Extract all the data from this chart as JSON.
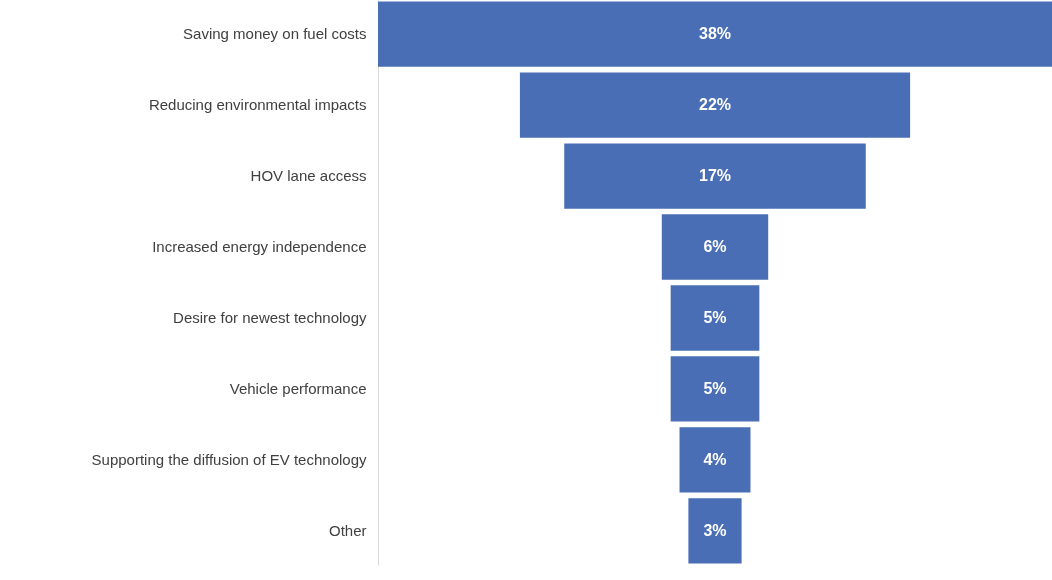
{
  "chart_data": {
    "type": "other",
    "categories": [
      "Saving money on fuel costs",
      "Reducing environmental impacts",
      "HOV lane access",
      "Increased energy independence",
      "Desire for newest technology",
      "Vehicle performance",
      "Supporting the diffusion of EV technology",
      "Other"
    ],
    "values": [
      38,
      22,
      17,
      6,
      5,
      5,
      4,
      3
    ],
    "color": "#4a6eb5",
    "value_labels": [
      "38%",
      "22%",
      "17%",
      "6%",
      "5%",
      "5%",
      "4%",
      "3%"
    ]
  }
}
